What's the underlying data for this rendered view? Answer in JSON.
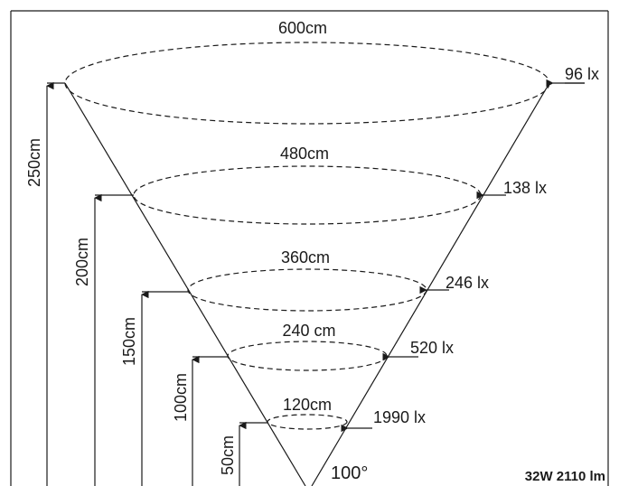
{
  "diagram": {
    "beam_angle": "100°",
    "rating": "32W 2110 lm",
    "levels": [
      {
        "height": "250cm",
        "diameter": "600cm",
        "illuminance": "96 lx"
      },
      {
        "height": "200cm",
        "diameter": "480cm",
        "illuminance": "138 lx"
      },
      {
        "height": "150cm",
        "diameter": "360cm",
        "illuminance": "246 lx"
      },
      {
        "height": "100cm",
        "diameter": "240 cm",
        "illuminance": "520 lx"
      },
      {
        "height": "50cm",
        "diameter": "120cm",
        "illuminance": "1990 lx"
      }
    ]
  }
}
